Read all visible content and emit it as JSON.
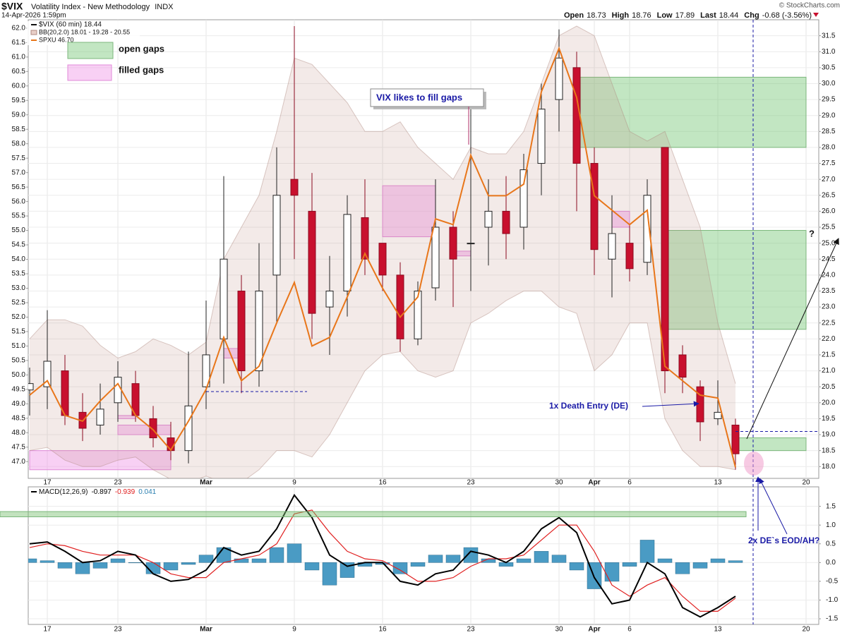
{
  "header": {
    "symbol": "$VIX",
    "name": "Volatility Index - New Methodology",
    "exchange": "INDX",
    "timestamp": "14-Apr-2026 1:59pm",
    "credit": "© StockCharts.com",
    "quote": [
      {
        "label": "Open",
        "value": "18.73"
      },
      {
        "label": "High",
        "value": "18.76"
      },
      {
        "label": "Low",
        "value": "17.89"
      },
      {
        "label": "Last",
        "value": "18.44"
      },
      {
        "label": "Chg",
        "value": "-0.68 (-3.56%)"
      }
    ]
  },
  "chart_data": [
    {
      "type": "candlestick",
      "categories": [
        null,
        "17",
        null,
        null,
        null,
        "23",
        null,
        null,
        null,
        null,
        "Mar",
        null,
        null,
        null,
        null,
        "9",
        null,
        null,
        null,
        null,
        "16",
        null,
        null,
        null,
        null,
        "23",
        null,
        null,
        null,
        null,
        "30",
        null,
        "Apr",
        null,
        "6",
        null,
        null,
        null,
        null,
        "13",
        null,
        null,
        null,
        null,
        "20"
      ],
      "ohlc": {
        "name": "$VIX (60 min) 18.44",
        "up_color": "#ffffff",
        "down_color": "#c8102e",
        "open": [
          20.4,
          20.5,
          21.0,
          19.7,
          19.3,
          20.0,
          20.6,
          19.5,
          18.9,
          18.5,
          20.5,
          22.0,
          23.5,
          21.0,
          24.0,
          27.0,
          26.0,
          23.0,
          23.5,
          25.8,
          25.0,
          24.0,
          22.0,
          23.6,
          25.5,
          25.0,
          25.5,
          26.0,
          25.5,
          27.5,
          29.5,
          30.5,
          27.5,
          24.5,
          25.0,
          24.4,
          28.0,
          21.5,
          20.5,
          19.5,
          19.3,
          null,
          null,
          null,
          null
        ],
        "high": [
          21.1,
          22.9,
          21.5,
          20.3,
          20.6,
          21.3,
          21.0,
          19.9,
          19.4,
          21.6,
          23.2,
          27.1,
          24.0,
          25.0,
          28.0,
          31.8,
          27.2,
          24.6,
          26.5,
          27.0,
          25.0,
          24.4,
          23.8,
          27.0,
          26.0,
          29.2,
          27.0,
          27.1,
          27.8,
          30.0,
          31.7,
          31.0,
          28.0,
          26.5,
          25.6,
          27.0,
          28.0,
          21.8,
          20.7,
          20.7,
          19.5,
          null,
          null,
          null,
          null
        ],
        "low": [
          19.6,
          19.8,
          19.3,
          18.8,
          19.0,
          19.4,
          19.4,
          18.6,
          18.2,
          18.1,
          19.8,
          20.6,
          20.3,
          20.5,
          22.5,
          24.5,
          22.0,
          21.5,
          22.7,
          24.0,
          23.5,
          21.6,
          21.8,
          23.2,
          23.0,
          23.5,
          24.3,
          24.5,
          24.8,
          26.5,
          28.5,
          26.0,
          24.0,
          23.3,
          23.8,
          24.0,
          20.3,
          20.3,
          18.8,
          19.3,
          17.9,
          null,
          null,
          null,
          null
        ],
        "close": [
          20.6,
          21.3,
          19.6,
          19.2,
          19.8,
          20.8,
          19.6,
          18.9,
          18.5,
          19.9,
          21.5,
          24.5,
          21.0,
          23.5,
          26.5,
          26.5,
          22.8,
          23.5,
          25.9,
          24.5,
          24.0,
          22.0,
          23.5,
          25.5,
          24.5,
          25.0,
          26.0,
          25.3,
          27.3,
          29.2,
          30.8,
          27.5,
          24.8,
          25.3,
          24.2,
          26.5,
          21.0,
          20.8,
          19.4,
          19.7,
          18.4,
          null,
          null,
          null,
          null
        ]
      },
      "bollinger": {
        "name": "BB(20,2.0) 18.01 - 19.28 - 20.55",
        "color": "#b08a80",
        "upper": [
          22.0,
          22.6,
          22.6,
          22.4,
          21.8,
          21.4,
          21.6,
          22.0,
          21.8,
          21.5,
          21.9,
          24.5,
          25.5,
          26.5,
          28.5,
          30.8,
          30.6,
          30.0,
          29.4,
          28.5,
          28.5,
          28.8,
          28.0,
          27.5,
          27.0,
          28.0,
          27.8,
          27.8,
          28.5,
          30.0,
          31.5,
          31.8,
          31.5,
          30.0,
          28.5,
          28.2,
          28.5,
          27.0,
          25.5,
          22.5,
          20.6,
          null,
          null,
          null,
          null
        ],
        "lower": [
          18.5,
          18.6,
          18.2,
          18.0,
          18.0,
          18.2,
          18.3,
          17.9,
          17.6,
          17.5,
          17.7,
          17.5,
          17.5,
          17.9,
          18.5,
          18.5,
          18.3,
          19.0,
          20.0,
          21.0,
          21.5,
          21.6,
          21.0,
          20.8,
          21.0,
          22.5,
          22.8,
          23.2,
          23.5,
          23.5,
          23.0,
          22.8,
          21.0,
          21.5,
          22.5,
          22.5,
          19.5,
          18.5,
          18.0,
          18.0,
          17.9,
          null,
          null,
          null,
          null
        ]
      },
      "series": [
        {
          "name": "SPXU 46.70",
          "color": "#e8761a",
          "axis": "y2",
          "values": [
            49.3,
            49.8,
            48.6,
            48.4,
            49.1,
            49.7,
            48.6,
            48.1,
            47.4,
            48.4,
            49.5,
            51.3,
            49.8,
            50.3,
            51.8,
            53.2,
            51.0,
            51.3,
            52.7,
            54.2,
            53.0,
            52.0,
            52.7,
            55.4,
            55.2,
            57.6,
            56.2,
            56.2,
            56.6,
            59.8,
            61.3,
            59.6,
            56.2,
            55.7,
            55.2,
            55.7,
            50.3,
            49.8,
            49.3,
            49.2,
            46.8,
            null,
            null,
            null,
            null
          ]
        }
      ],
      "ylim": [
        17.63,
        32.0
      ],
      "yticks": [
        {
          "value": 18,
          "label": "18.0"
        },
        18.5,
        {
          "value": 19,
          "label": "19.0"
        },
        19.5,
        {
          "value": 20,
          "label": "20.0"
        },
        20.5,
        {
          "value": 21,
          "label": "21.0"
        },
        21.5,
        {
          "value": 22,
          "label": "22.0"
        },
        22.5,
        {
          "value": 23,
          "label": "23.0"
        },
        23.5,
        {
          "value": 24,
          "label": "24.0"
        },
        24.5,
        {
          "value": 25,
          "label": "25.0"
        },
        25.5,
        {
          "value": 26,
          "label": "26.0"
        },
        26.5,
        {
          "value": 27,
          "label": "27.0"
        },
        27.5,
        {
          "value": 28,
          "label": "28.0"
        },
        28.5,
        {
          "value": 29,
          "label": "29.0"
        },
        29.5,
        {
          "value": 30,
          "label": "30.0"
        },
        30.5,
        {
          "value": 31,
          "label": "31.0"
        },
        31.5
      ],
      "y2lim": [
        46.42,
        62.29
      ],
      "y2ticks": [
        {
          "value": 47,
          "label": "47.0"
        },
        47.5,
        {
          "value": 48,
          "label": "48.0"
        },
        48.5,
        {
          "value": 49,
          "label": "49.0"
        },
        49.5,
        {
          "value": 50,
          "label": "50.0"
        },
        50.5,
        {
          "value": 51,
          "label": "51.0"
        },
        51.5,
        {
          "value": 52,
          "label": "52.0"
        },
        52.5,
        {
          "value": 53,
          "label": "53.0"
        },
        53.5,
        {
          "value": 54,
          "label": "54.0"
        },
        54.5,
        {
          "value": 55,
          "label": "55.0"
        },
        55.5,
        {
          "value": 56,
          "label": "56.0"
        },
        56.5,
        {
          "value": 57,
          "label": "57.0"
        },
        57.5,
        {
          "value": 58,
          "label": "58.0"
        },
        58.5,
        {
          "value": 59,
          "label": "59.0"
        },
        59.5,
        {
          "value": 60,
          "label": "60.0"
        },
        60.5,
        {
          "value": 61,
          "label": "61.0"
        },
        61.5,
        {
          "value": 62,
          "label": "62.0"
        }
      ],
      "grid": true,
      "gap_legend": {
        "open": "open gaps",
        "filled": "filled gaps",
        "open_color": "rgba(120,200,120,0.45)",
        "filled_color": "rgba(240,150,230,0.45)"
      },
      "open_gaps": [
        {
          "start": 31,
          "end": 44,
          "low": 28.0,
          "high": 30.2
        },
        {
          "start": 36,
          "end": 44,
          "low": 22.3,
          "high": 25.4
        },
        {
          "start": 40,
          "end": 44,
          "low": 18.5,
          "high": 18.9
        }
      ],
      "filled_gaps": [
        {
          "start": 0,
          "end": 8,
          "low": 17.9,
          "high": 18.5
        },
        {
          "start": 5,
          "end": 8,
          "low": 19.0,
          "high": 19.3
        },
        {
          "start": 5,
          "end": 6,
          "low": 19.5,
          "high": 19.6
        },
        {
          "start": 11,
          "end": 12,
          "low": 21.4,
          "high": 21.7
        },
        {
          "start": 20,
          "end": 23,
          "low": 25.2,
          "high": 26.8
        },
        {
          "start": 24,
          "end": 25,
          "low": 24.6,
          "high": 24.75
        },
        {
          "start": 33,
          "end": 34,
          "low": 25.5,
          "high": 26.0
        }
      ],
      "hlines": [
        {
          "value": 20.35,
          "start": 10,
          "end": 15
        },
        {
          "value": 19.1,
          "start": 40,
          "end": 44
        }
      ],
      "vline": 41,
      "annotations": [
        "VIX likes to fill gaps",
        "1x Death Entry (DE)",
        "2x DE`s EOD/AH?",
        "?"
      ]
    },
    {
      "type": "macd",
      "legend": {
        "label": "MACD(12,26,9)",
        "values": [
          {
            "text": "-0.897",
            "color": "#000000"
          },
          {
            "text": "-0.939",
            "color": "#e02020"
          },
          {
            "text": "0.041",
            "color": "#2a7fb0"
          }
        ]
      },
      "macd": {
        "color": "#000000",
        "values": [
          0.5,
          0.55,
          0.3,
          0.0,
          0.05,
          0.3,
          0.2,
          -0.3,
          -0.5,
          -0.45,
          -0.2,
          0.4,
          0.2,
          0.3,
          0.9,
          1.8,
          1.2,
          0.2,
          -0.1,
          0.0,
          0.0,
          -0.5,
          -0.6,
          -0.3,
          -0.2,
          0.3,
          0.2,
          0.0,
          0.3,
          0.9,
          1.2,
          0.8,
          -0.4,
          -1.1,
          -1.0,
          0.0,
          -0.3,
          -1.2,
          -1.45,
          -1.2,
          -0.9,
          null,
          null,
          null,
          null
        ]
      },
      "signal": {
        "color": "#e02020",
        "values": [
          0.4,
          0.5,
          0.45,
          0.3,
          0.2,
          0.2,
          0.2,
          0.0,
          -0.3,
          -0.4,
          -0.4,
          0.0,
          0.1,
          0.2,
          0.5,
          1.3,
          1.4,
          0.8,
          0.3,
          0.1,
          0.05,
          -0.2,
          -0.5,
          -0.5,
          -0.4,
          -0.1,
          0.1,
          0.1,
          0.2,
          0.6,
          1.0,
          1.0,
          0.3,
          -0.6,
          -0.9,
          -0.6,
          -0.4,
          -0.9,
          -1.3,
          -1.3,
          -0.95,
          null,
          null,
          null,
          null
        ]
      },
      "histogram": {
        "color": "#4a9bc4",
        "values": [
          0.1,
          0.05,
          -0.15,
          -0.3,
          -0.15,
          0.1,
          0.0,
          -0.3,
          -0.2,
          -0.05,
          0.2,
          0.4,
          0.1,
          0.1,
          0.4,
          0.5,
          -0.2,
          -0.6,
          -0.4,
          -0.1,
          -0.05,
          -0.3,
          -0.1,
          0.2,
          0.2,
          0.4,
          0.1,
          -0.1,
          0.1,
          0.3,
          0.2,
          -0.2,
          -0.7,
          -0.5,
          -0.1,
          0.6,
          0.1,
          -0.3,
          -0.15,
          0.1,
          0.05,
          null,
          null,
          null,
          null
        ]
      },
      "band": {
        "low": 1.22,
        "high": 1.36,
        "color": "rgba(120,190,110,0.45)"
      },
      "ylim": [
        -1.65,
        2.02
      ],
      "yticks": [
        1.5,
        {
          "value": 1,
          "label": "1.0"
        },
        0.5,
        {
          "value": 0,
          "label": "0.0"
        },
        -0.5,
        {
          "value": -1,
          "label": "-1.0"
        },
        -1.5
      ]
    }
  ]
}
